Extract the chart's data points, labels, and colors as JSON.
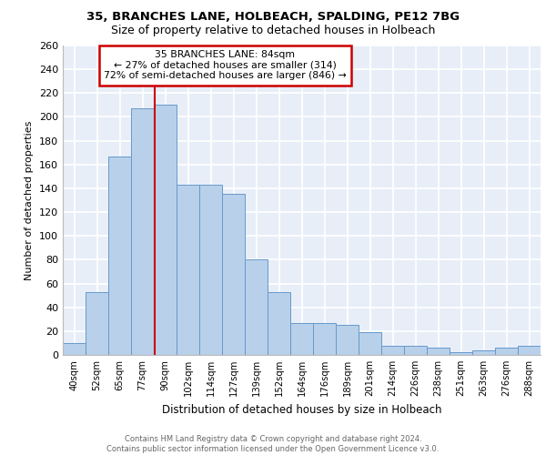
{
  "title1": "35, BRANCHES LANE, HOLBEACH, SPALDING, PE12 7BG",
  "title2": "Size of property relative to detached houses in Holbeach",
  "xlabel": "Distribution of detached houses by size in Holbeach",
  "ylabel": "Number of detached properties",
  "footnote1": "Contains HM Land Registry data © Crown copyright and database right 2024.",
  "footnote2": "Contains public sector information licensed under the Open Government Licence v3.0.",
  "categories": [
    "40sqm",
    "52sqm",
    "65sqm",
    "77sqm",
    "90sqm",
    "102sqm",
    "114sqm",
    "127sqm",
    "139sqm",
    "152sqm",
    "164sqm",
    "176sqm",
    "189sqm",
    "201sqm",
    "214sqm",
    "226sqm",
    "238sqm",
    "251sqm",
    "263sqm",
    "276sqm",
    "288sqm"
  ],
  "values": [
    10,
    53,
    167,
    207,
    210,
    143,
    143,
    135,
    80,
    53,
    27,
    27,
    25,
    19,
    8,
    8,
    6,
    2,
    4,
    6,
    8
  ],
  "bar_color": "#b8d0ea",
  "bar_edge_color": "#6699cc",
  "property_line_label": "35 BRANCHES LANE: 84sqm",
  "annotation_line1": "← 27% of detached houses are smaller (314)",
  "annotation_line2": "72% of semi-detached houses are larger (846) →",
  "annotation_box_color": "#cc0000",
  "ylim": [
    0,
    260
  ],
  "yticks": [
    0,
    20,
    40,
    60,
    80,
    100,
    120,
    140,
    160,
    180,
    200,
    220,
    240,
    260
  ],
  "background_color": "#e8eef8",
  "grid_color": "#ffffff"
}
